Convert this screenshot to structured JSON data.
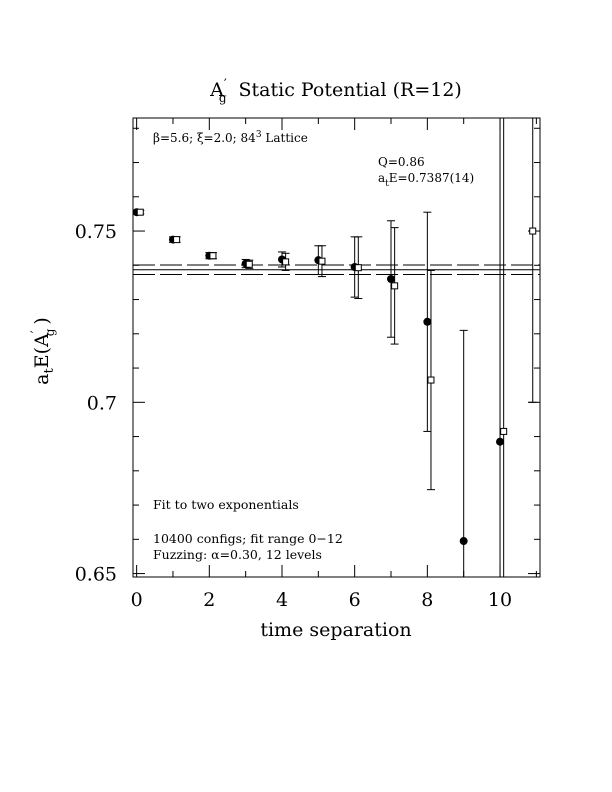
{
  "chart_data": {
    "type": "scatter",
    "title_main": "A",
    "title_prime": "′",
    "title_sub": "g",
    "title_rest": "Static Potential (R=12)",
    "params_text": "β=5.6; ξ=2.0; 8⁴3 Lattice",
    "params": {
      "beta": "β=5.6; ",
      "xi": "ξ=2.0; ",
      "lattice_base": "84",
      "lattice_exp": "3",
      "lattice_rest": " Lattice"
    },
    "q_label": "Q=0.86",
    "energy_label_prefix": "a",
    "energy_label_sub": "t",
    "energy_label_rest": "E=0.7387(14)",
    "note_lines": [
      "Fit to two exponentials",
      "10400 configs; fit range 0−12",
      "Fuzzing: α=0.30, 12 levels"
    ],
    "xlabel": "time separation",
    "ylabel_prefix": "a",
    "ylabel_sub": "t",
    "ylabel_mid": "E(A",
    "ylabel_prime": "′",
    "ylabel_sub2": "g",
    "ylabel_end": ")",
    "xlim": [
      -0.1,
      11.1
    ],
    "ylim": [
      0.649,
      0.783
    ],
    "x_ticks": [
      0,
      2,
      4,
      6,
      8,
      10
    ],
    "x_tick_labels": [
      "0",
      "2",
      "4",
      "6",
      "8",
      "10"
    ],
    "y_ticks": [
      0.65,
      0.7,
      0.75
    ],
    "y_tick_labels": [
      "0.65",
      "0.7",
      "0.75"
    ],
    "fit": {
      "value": 0.7387,
      "error": 0.0014,
      "lines": [
        0.7373,
        0.7387,
        0.7401
      ]
    },
    "series": [
      {
        "marker": "filled-circle",
        "points": [
          {
            "x": 0,
            "y": 0.7555,
            "err": 0.0005
          },
          {
            "x": 1,
            "y": 0.7475,
            "err": 0.0008
          },
          {
            "x": 2,
            "y": 0.7428,
            "err": 0.0009
          },
          {
            "x": 3,
            "y": 0.7405,
            "err": 0.0012
          },
          {
            "x": 4,
            "y": 0.7417,
            "err": 0.0022
          },
          {
            "x": 5,
            "y": 0.7415,
            "err": 0.0042
          },
          {
            "x": 6,
            "y": 0.7395,
            "err": 0.0088
          },
          {
            "x": 7,
            "y": 0.736,
            "err": 0.017
          },
          {
            "x": 8,
            "y": 0.7235,
            "err": 0.032
          },
          {
            "x": 9,
            "y": 0.6595,
            "err": 0.0615
          },
          {
            "x": 10,
            "y": 0.6885,
            "err": 0.118
          }
        ]
      },
      {
        "marker": "open-square",
        "points": [
          {
            "x": 0.1,
            "y": 0.7555,
            "err": 0.0005
          },
          {
            "x": 1.1,
            "y": 0.7475,
            "err": 0.0008
          },
          {
            "x": 2.1,
            "y": 0.7428,
            "err": 0.0009
          },
          {
            "x": 3.1,
            "y": 0.7403,
            "err": 0.0012
          },
          {
            "x": 4.1,
            "y": 0.741,
            "err": 0.0025
          },
          {
            "x": 5.1,
            "y": 0.7412,
            "err": 0.0045
          },
          {
            "x": 6.1,
            "y": 0.7393,
            "err": 0.009
          },
          {
            "x": 7.1,
            "y": 0.734,
            "err": 0.017
          },
          {
            "x": 8.1,
            "y": 0.7065,
            "err": 0.032
          },
          {
            "x": 10.1,
            "y": 0.6915,
            "err": 0.12
          },
          {
            "x": 10.9,
            "y": 0.75,
            "err": 0.05
          }
        ]
      }
    ],
    "grid": false,
    "legend": "none"
  }
}
